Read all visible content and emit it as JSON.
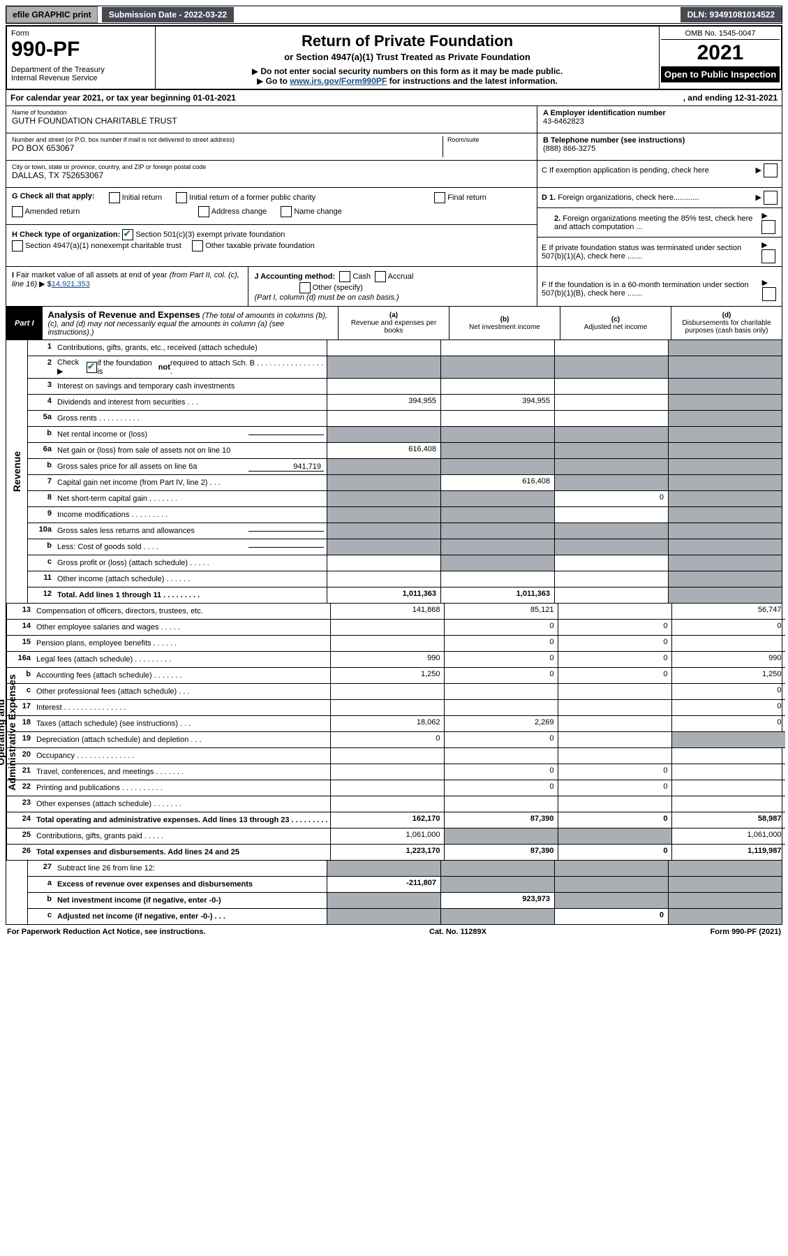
{
  "top_bar": {
    "efile_button": "efile GRAPHIC print",
    "submission_label": "Submission Date - 2022-03-22",
    "dln": "DLN: 93491081014522"
  },
  "header": {
    "form_word": "Form",
    "form_number": "990-PF",
    "dept": "Department of the Treasury",
    "irs": "Internal Revenue Service",
    "title": "Return of Private Foundation",
    "subtitle": "or Section 4947(a)(1) Trust Treated as Private Foundation",
    "note1": "Do not enter social security numbers on this form as it may be made public.",
    "note2_prefix": "Go to ",
    "note2_link": "www.irs.gov/Form990PF",
    "note2_suffix": " for instructions and the latest information.",
    "omb": "OMB No. 1545-0047",
    "tax_year": "2021",
    "open_public": "Open to Public Inspection"
  },
  "calendar_line": {
    "text_left": "For calendar year 2021, or tax year beginning 01-01-2021",
    "text_right": ", and ending 12-31-2021"
  },
  "name_block": {
    "label": "Name of foundation",
    "value": "GUTH FOUNDATION CHARITABLE TRUST"
  },
  "address_block": {
    "label": "Number and street (or P.O. box number if mail is not delivered to street address)",
    "value": "PO BOX 653067",
    "room_label": "Room/suite",
    "room_value": ""
  },
  "city_block": {
    "label": "City or town, state or province, country, and ZIP or foreign postal code",
    "value": "DALLAS, TX  752653067"
  },
  "ein_block": {
    "label": "A Employer identification number",
    "value": "43-6462823"
  },
  "phone_block": {
    "label": "B Telephone number (see instructions)",
    "value": "(888) 866-3275"
  },
  "c_block": {
    "text": "C If exemption application is pending, check here"
  },
  "g_block": {
    "label": "G Check all that apply:",
    "options": [
      "Initial return",
      "Initial return of a former public charity",
      "Final return",
      "Amended return",
      "Address change",
      "Name change"
    ]
  },
  "h_block": {
    "label": "H Check type of organization:",
    "opt1": "Section 501(c)(3) exempt private foundation",
    "opt2": "Section 4947(a)(1) nonexempt charitable trust",
    "opt3": "Other taxable private foundation"
  },
  "i_block": {
    "label": "I Fair market value of all assets at end of year (from Part II, col. (c), line 16)",
    "value_prefix": "▶ $",
    "value": "14,921,353"
  },
  "j_block": {
    "label": "J Accounting method:",
    "cash": "Cash",
    "accrual": "Accrual",
    "other": "Other (specify)",
    "note": "(Part I, column (d) must be on cash basis.)"
  },
  "d_block": {
    "d1": "D 1. Foreign organizations, check here............",
    "d2": "2. Foreign organizations meeting the 85% test, check here and attach computation ..."
  },
  "e_block": {
    "text": "E  If private foundation status was terminated under section 507(b)(1)(A), check here ......."
  },
  "f_block": {
    "text": "F  If the foundation is in a 60-month termination under section 507(b)(1)(B), check here ......."
  },
  "part1": {
    "label": "Part I",
    "title": "Analysis of Revenue and Expenses",
    "note": "(The total of amounts in columns (b), (c), and (d) may not necessarily equal the amounts in column (a) (see instructions).)",
    "col_a": {
      "lbl": "(a)",
      "txt": "Revenue and expenses per books"
    },
    "col_b": {
      "lbl": "(b)",
      "txt": "Net investment income"
    },
    "col_c": {
      "lbl": "(c)",
      "txt": "Adjusted net income"
    },
    "col_d": {
      "lbl": "(d)",
      "txt": "Disbursements for charitable purposes (cash basis only)"
    }
  },
  "revenue_label": "Revenue",
  "expenses_label": "Operating and Administrative Expenses",
  "rows": {
    "r1": {
      "num": "1",
      "desc": "Contributions, gifts, grants, etc., received (attach schedule)",
      "a": "",
      "b": "",
      "c": "",
      "d": "",
      "shade": [
        "d"
      ]
    },
    "r2": {
      "num": "2",
      "desc": "Check ▶       if the foundation is not required to attach Sch. B",
      "check": true,
      "a": "",
      "b": "",
      "c": "",
      "d": "",
      "shade": [
        "a",
        "b",
        "c",
        "d"
      ],
      "dots": "  . . . . . . . . . . . . . . . . ."
    },
    "r3": {
      "num": "3",
      "desc": "Interest on savings and temporary cash investments",
      "a": "",
      "b": "",
      "c": "",
      "d": "",
      "shade": [
        "d"
      ]
    },
    "r4": {
      "num": "4",
      "desc": "Dividends and interest from securities",
      "dots": "    .    .    .",
      "a": "394,955",
      "b": "394,955",
      "c": "",
      "d": "",
      "shade": [
        "d"
      ]
    },
    "r5a": {
      "num": "5a",
      "desc": "Gross rents",
      "dots": "    .    .    .    .    .    .    .    .    .    .",
      "a": "",
      "b": "",
      "c": "",
      "d": "",
      "shade": [
        "d"
      ]
    },
    "r5b": {
      "num": "b",
      "desc": "Net rental income or (loss)",
      "inline_box": "",
      "a": "",
      "b": "",
      "c": "",
      "d": "",
      "shade": [
        "a",
        "b",
        "c",
        "d"
      ]
    },
    "r6a": {
      "num": "6a",
      "desc": "Net gain or (loss) from sale of assets not on line 10",
      "a": "616,408",
      "b": "",
      "c": "",
      "d": "",
      "shade": [
        "b",
        "c",
        "d"
      ]
    },
    "r6b": {
      "num": "b",
      "desc": "Gross sales price for all assets on line 6a",
      "inline_box": "941,719",
      "a": "",
      "b": "",
      "c": "",
      "d": "",
      "shade": [
        "a",
        "b",
        "c",
        "d"
      ]
    },
    "r7": {
      "num": "7",
      "desc": "Capital gain net income (from Part IV, line 2)",
      "dots": "   .   .   .",
      "a": "",
      "b": "616,408",
      "c": "",
      "d": "",
      "shade": [
        "a",
        "c",
        "d"
      ]
    },
    "r8": {
      "num": "8",
      "desc": "Net short-term capital gain",
      "dots": "   .   .   .   .   .   .   .",
      "a": "",
      "b": "",
      "c": "0",
      "d": "",
      "shade": [
        "a",
        "b",
        "d"
      ]
    },
    "r9": {
      "num": "9",
      "desc": "Income modifications",
      "dots": "   .   .   .   .   .   .   .   .   .",
      "a": "",
      "b": "",
      "c": "",
      "d": "",
      "shade": [
        "a",
        "b",
        "d"
      ]
    },
    "r10a": {
      "num": "10a",
      "desc": "Gross sales less returns and allowances",
      "inline_box": "",
      "a": "",
      "b": "",
      "c": "",
      "d": "",
      "shade": [
        "a",
        "b",
        "c",
        "d"
      ]
    },
    "r10b": {
      "num": "b",
      "desc": "Less: Cost of goods sold",
      "dots": "    .    .    .    .",
      "inline_box": "",
      "a": "",
      "b": "",
      "c": "",
      "d": "",
      "shade": [
        "a",
        "b",
        "c",
        "d"
      ]
    },
    "r10c": {
      "num": "c",
      "desc": "Gross profit or (loss) (attach schedule)",
      "dots": "   .   .   .   .   .",
      "a": "",
      "b": "",
      "c": "",
      "d": "",
      "shade": [
        "b",
        "d"
      ]
    },
    "r11": {
      "num": "11",
      "desc": "Other income (attach schedule)",
      "dots": "   .   .   .   .   .   .",
      "a": "",
      "b": "",
      "c": "",
      "d": "",
      "shade": [
        "d"
      ]
    },
    "r12": {
      "num": "12",
      "desc": "Total. Add lines 1 through 11",
      "dots": "   .   .   .   .   .   .   .   .   .",
      "a": "1,011,363",
      "b": "1,011,363",
      "c": "",
      "d": "",
      "shade": [
        "d"
      ],
      "bold": true
    },
    "r13": {
      "num": "13",
      "desc": "Compensation of officers, directors, trustees, etc.",
      "a": "141,868",
      "b": "85,121",
      "c": "",
      "d": "56,747"
    },
    "r14": {
      "num": "14",
      "desc": "Other employee salaries and wages",
      "dots": "    .    .    .    .    .",
      "a": "",
      "b": "0",
      "c": "0",
      "d": "0"
    },
    "r15": {
      "num": "15",
      "desc": "Pension plans, employee benefits",
      "dots": "   .   .   .   .   .   .",
      "a": "",
      "b": "0",
      "c": "0",
      "d": ""
    },
    "r16a": {
      "num": "16a",
      "desc": "Legal fees (attach schedule)",
      "dots": "  .   .   .   .   .   .   .   .   .",
      "a": "990",
      "b": "0",
      "c": "0",
      "d": "990"
    },
    "r16b": {
      "num": "b",
      "desc": "Accounting fees (attach schedule)",
      "dots": "  .   .   .   .   .   .   .",
      "a": "1,250",
      "b": "0",
      "c": "0",
      "d": "1,250"
    },
    "r16c": {
      "num": "c",
      "desc": "Other professional fees (attach schedule)",
      "dots": "    .    .    .",
      "a": "",
      "b": "",
      "c": "",
      "d": "0"
    },
    "r17": {
      "num": "17",
      "desc": "Interest",
      "dots": "  .   .   .   .   .   .   .   .   .   .   .   .   .   .   .",
      "a": "",
      "b": "",
      "c": "",
      "d": "0"
    },
    "r18": {
      "num": "18",
      "desc": "Taxes (attach schedule) (see instructions)",
      "dots": "    .    .    .",
      "a": "18,062",
      "b": "2,269",
      "c": "",
      "d": "0"
    },
    "r19": {
      "num": "19",
      "desc": "Depreciation (attach schedule) and depletion",
      "dots": "    .    .    .",
      "a": "0",
      "b": "0",
      "c": "",
      "d": "",
      "shade": [
        "d"
      ]
    },
    "r20": {
      "num": "20",
      "desc": "Occupancy",
      "dots": "  .   .   .   .   .   .   .   .   .   .   .   .   .   .",
      "a": "",
      "b": "",
      "c": "",
      "d": ""
    },
    "r21": {
      "num": "21",
      "desc": "Travel, conferences, and meetings",
      "dots": "  .   .   .   .   .   .   .",
      "a": "",
      "b": "0",
      "c": "0",
      "d": ""
    },
    "r22": {
      "num": "22",
      "desc": "Printing and publications",
      "dots": "  .   .   .   .   .   .   .   .   .   .",
      "a": "",
      "b": "0",
      "c": "0",
      "d": ""
    },
    "r23": {
      "num": "23",
      "desc": "Other expenses (attach schedule)",
      "dots": "  .   .   .   .   .   .   .",
      "a": "",
      "b": "",
      "c": "",
      "d": ""
    },
    "r24": {
      "num": "24",
      "desc": "Total operating and administrative expenses. Add lines 13 through 23",
      "dots": "   .   .   .   .   .   .   .   .   .",
      "a": "162,170",
      "b": "87,390",
      "c": "0",
      "d": "58,987",
      "bold": true
    },
    "r25": {
      "num": "25",
      "desc": "Contributions, gifts, grants paid",
      "dots": "    .    .    .    .    .",
      "a": "1,061,000",
      "b": "",
      "c": "",
      "d": "1,061,000",
      "shade": [
        "b",
        "c"
      ]
    },
    "r26": {
      "num": "26",
      "desc": "Total expenses and disbursements. Add lines 24 and 25",
      "a": "1,223,170",
      "b": "87,390",
      "c": "0",
      "d": "1,119,987",
      "bold": true
    },
    "r27": {
      "num": "27",
      "desc": "Subtract line 26 from line 12:",
      "a": "",
      "b": "",
      "c": "",
      "d": "",
      "shade": [
        "a",
        "b",
        "c",
        "d"
      ]
    },
    "r27a": {
      "num": "a",
      "desc": "Excess of revenue over expenses and disbursements",
      "a": "-211,807",
      "b": "",
      "c": "",
      "d": "",
      "shade": [
        "b",
        "c",
        "d"
      ],
      "bold": true
    },
    "r27b": {
      "num": "b",
      "desc": "Net investment income (if negative, enter -0-)",
      "a": "",
      "b": "923,973",
      "c": "",
      "d": "",
      "shade": [
        "a",
        "c",
        "d"
      ],
      "bold": true
    },
    "r27c": {
      "num": "c",
      "desc": "Adjusted net income (if negative, enter -0-)",
      "dots": "   .   .   .",
      "a": "",
      "b": "",
      "c": "0",
      "d": "",
      "shade": [
        "a",
        "b",
        "d"
      ],
      "bold": true
    }
  },
  "revenue_row_keys": [
    "r1",
    "r2",
    "r3",
    "r4",
    "r5a",
    "r5b",
    "r6a",
    "r6b",
    "r7",
    "r8",
    "r9",
    "r10a",
    "r10b",
    "r10c",
    "r11",
    "r12"
  ],
  "expense_row_keys": [
    "r13",
    "r14",
    "r15",
    "r16a",
    "r16b",
    "r16c",
    "r17",
    "r18",
    "r19",
    "r20",
    "r21",
    "r22",
    "r23",
    "r24",
    "r25",
    "r26"
  ],
  "final_row_keys": [
    "r27",
    "r27a",
    "r27b",
    "r27c"
  ],
  "footer": {
    "left": "For Paperwork Reduction Act Notice, see instructions.",
    "center": "Cat. No. 11289X",
    "right": "Form 990-PF (2021)"
  }
}
